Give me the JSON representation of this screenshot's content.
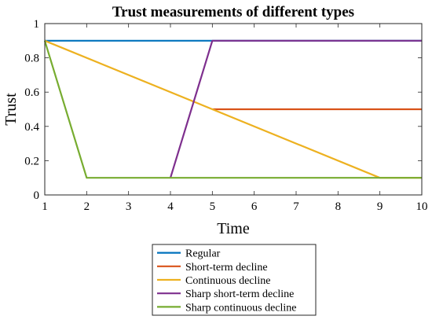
{
  "chart_data": {
    "type": "line",
    "title": "Trust measurements of different types",
    "xlabel": "Time",
    "ylabel": "Trust",
    "xlim": [
      1,
      10
    ],
    "ylim": [
      0,
      1
    ],
    "xticks": [
      1,
      2,
      3,
      4,
      5,
      6,
      7,
      8,
      9,
      10
    ],
    "yticks": [
      0,
      0.2,
      0.4,
      0.6,
      0.8,
      1
    ],
    "ytick_labels": [
      "0",
      "0.2",
      "0.4",
      "0.6",
      "0.8",
      "1"
    ],
    "grid": false,
    "legend_position": "bottom-center, below plot",
    "series": [
      {
        "name": "Regular",
        "color": "#0072BD",
        "x": [
          1,
          5,
          10
        ],
        "y": [
          0.9,
          0.9,
          0.9
        ]
      },
      {
        "name": "Short-term decline",
        "color": "#D95319",
        "x": [
          5,
          10
        ],
        "y": [
          0.5,
          0.5
        ]
      },
      {
        "name": "Continuous decline",
        "color": "#EDB120",
        "x": [
          1,
          9,
          10
        ],
        "y": [
          0.9,
          0.1,
          0.1
        ]
      },
      {
        "name": "Sharp short-term decline",
        "color": "#7E2F8E",
        "x": [
          4,
          5,
          10
        ],
        "y": [
          0.1,
          0.9,
          0.9
        ]
      },
      {
        "name": "Sharp continuous decline",
        "color": "#77AC30",
        "x": [
          1,
          2,
          10
        ],
        "y": [
          0.9,
          0.1,
          0.1
        ]
      }
    ]
  }
}
